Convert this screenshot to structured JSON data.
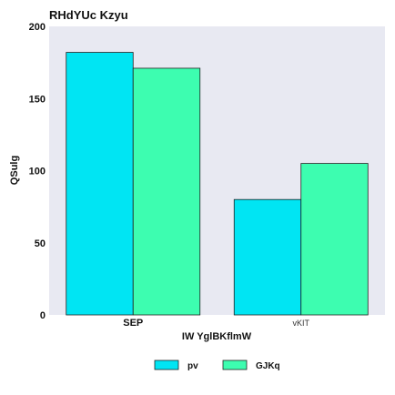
{
  "chart_data": {
    "type": "bar",
    "title": "RHdYUc Kzyu",
    "xlabel": "IW YglBKflmW",
    "ylabel": "QSulg",
    "categories": [
      "SEP",
      "vKIT"
    ],
    "series": [
      {
        "name": "pv",
        "color": "#00e5f3",
        "values": [
          182,
          80
        ]
      },
      {
        "name": "GJKq",
        "color": "#3dfdb0",
        "values": [
          171,
          105
        ]
      }
    ],
    "ylim": [
      0,
      200
    ],
    "yticks": [
      0,
      50,
      100,
      150,
      200
    ],
    "grid": false,
    "legend_position": "bottom",
    "plot_background": "#e8e9f2"
  }
}
